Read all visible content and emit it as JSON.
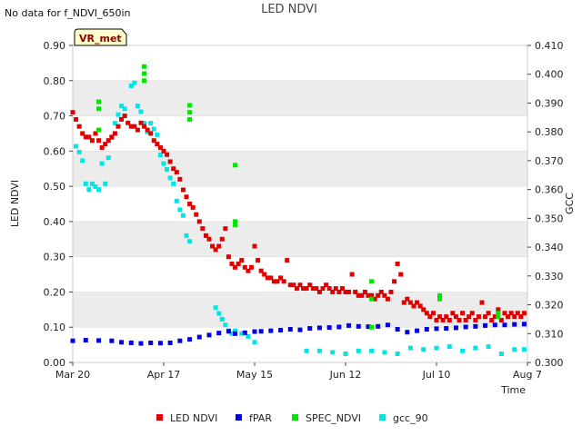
{
  "chart_data": {
    "type": "scatter",
    "title": "LED NDVI",
    "corner_note": "No data for f_NDVI_650in",
    "badge": "VR_met",
    "xlabel": "Time",
    "ylabel_left": "LED NDVI",
    "ylabel_right": "GCC",
    "x_range_days": [
      0,
      140
    ],
    "x_ticks": [
      {
        "day": 0,
        "label": "Mar 20"
      },
      {
        "day": 28,
        "label": "Apr 17"
      },
      {
        "day": 56,
        "label": "May 15"
      },
      {
        "day": 84,
        "label": "Jun 12"
      },
      {
        "day": 112,
        "label": "Jul 10"
      },
      {
        "day": 140,
        "label": "Aug 7"
      }
    ],
    "ylim_left": [
      0.0,
      0.9
    ],
    "left_ticks": [
      "0.00",
      "0.10",
      "0.20",
      "0.30",
      "0.40",
      "0.50",
      "0.60",
      "0.70",
      "0.80",
      "0.90"
    ],
    "ylim_right": [
      0.3,
      0.41
    ],
    "right_ticks": [
      "0.300",
      "0.310",
      "0.320",
      "0.330",
      "0.340",
      "0.350",
      "0.360",
      "0.370",
      "0.380",
      "0.390",
      "0.400",
      "0.410"
    ],
    "colors": {
      "band": "#ececec",
      "grid": "#dddddd"
    },
    "series": [
      {
        "name": "LED NDVI",
        "color": "#e00000",
        "axis": "left",
        "points": [
          [
            0,
            0.71
          ],
          [
            1,
            0.69
          ],
          [
            2,
            0.67
          ],
          [
            3,
            0.65
          ],
          [
            4,
            0.64
          ],
          [
            5,
            0.64
          ],
          [
            6,
            0.63
          ],
          [
            7,
            0.65
          ],
          [
            8,
            0.63
          ],
          [
            9,
            0.61
          ],
          [
            10,
            0.62
          ],
          [
            11,
            0.63
          ],
          [
            12,
            0.64
          ],
          [
            13,
            0.65
          ],
          [
            14,
            0.67
          ],
          [
            15,
            0.69
          ],
          [
            16,
            0.7
          ],
          [
            17,
            0.68
          ],
          [
            18,
            0.67
          ],
          [
            19,
            0.67
          ],
          [
            20,
            0.66
          ],
          [
            21,
            0.68
          ],
          [
            22,
            0.67
          ],
          [
            23,
            0.66
          ],
          [
            24,
            0.65
          ],
          [
            25,
            0.63
          ],
          [
            26,
            0.62
          ],
          [
            27,
            0.61
          ],
          [
            28,
            0.6
          ],
          [
            29,
            0.59
          ],
          [
            30,
            0.57
          ],
          [
            31,
            0.55
          ],
          [
            32,
            0.54
          ],
          [
            33,
            0.52
          ],
          [
            34,
            0.49
          ],
          [
            35,
            0.47
          ],
          [
            36,
            0.45
          ],
          [
            37,
            0.44
          ],
          [
            38,
            0.42
          ],
          [
            39,
            0.4
          ],
          [
            40,
            0.38
          ],
          [
            41,
            0.36
          ],
          [
            42,
            0.35
          ],
          [
            43,
            0.33
          ],
          [
            44,
            0.32
          ],
          [
            45,
            0.33
          ],
          [
            46,
            0.35
          ],
          [
            47,
            0.38
          ],
          [
            48,
            0.3
          ],
          [
            49,
            0.28
          ],
          [
            50,
            0.27
          ],
          [
            51,
            0.28
          ],
          [
            52,
            0.29
          ],
          [
            53,
            0.27
          ],
          [
            54,
            0.26
          ],
          [
            55,
            0.27
          ],
          [
            56,
            0.33
          ],
          [
            57,
            0.29
          ],
          [
            58,
            0.26
          ],
          [
            59,
            0.25
          ],
          [
            60,
            0.24
          ],
          [
            61,
            0.24
          ],
          [
            62,
            0.23
          ],
          [
            63,
            0.23
          ],
          [
            64,
            0.24
          ],
          [
            65,
            0.23
          ],
          [
            66,
            0.29
          ],
          [
            67,
            0.22
          ],
          [
            68,
            0.22
          ],
          [
            69,
            0.21
          ],
          [
            70,
            0.22
          ],
          [
            71,
            0.21
          ],
          [
            72,
            0.21
          ],
          [
            73,
            0.22
          ],
          [
            74,
            0.21
          ],
          [
            75,
            0.21
          ],
          [
            76,
            0.2
          ],
          [
            77,
            0.21
          ],
          [
            78,
            0.22
          ],
          [
            79,
            0.21
          ],
          [
            80,
            0.2
          ],
          [
            81,
            0.21
          ],
          [
            82,
            0.2
          ],
          [
            83,
            0.21
          ],
          [
            84,
            0.2
          ],
          [
            85,
            0.2
          ],
          [
            86,
            0.25
          ],
          [
            87,
            0.2
          ],
          [
            88,
            0.19
          ],
          [
            89,
            0.19
          ],
          [
            90,
            0.2
          ],
          [
            91,
            0.19
          ],
          [
            92,
            0.19
          ],
          [
            93,
            0.18
          ],
          [
            94,
            0.19
          ],
          [
            95,
            0.2
          ],
          [
            96,
            0.19
          ],
          [
            97,
            0.18
          ],
          [
            98,
            0.2
          ],
          [
            99,
            0.23
          ],
          [
            100,
            0.28
          ],
          [
            101,
            0.25
          ],
          [
            102,
            0.17
          ],
          [
            103,
            0.18
          ],
          [
            104,
            0.17
          ],
          [
            105,
            0.16
          ],
          [
            106,
            0.17
          ],
          [
            107,
            0.16
          ],
          [
            108,
            0.15
          ],
          [
            109,
            0.14
          ],
          [
            110,
            0.13
          ],
          [
            111,
            0.14
          ],
          [
            112,
            0.12
          ],
          [
            113,
            0.13
          ],
          [
            114,
            0.12
          ],
          [
            115,
            0.13
          ],
          [
            116,
            0.12
          ],
          [
            117,
            0.14
          ],
          [
            118,
            0.13
          ],
          [
            119,
            0.12
          ],
          [
            120,
            0.14
          ],
          [
            121,
            0.12
          ],
          [
            122,
            0.13
          ],
          [
            123,
            0.14
          ],
          [
            124,
            0.12
          ],
          [
            125,
            0.13
          ],
          [
            126,
            0.17
          ],
          [
            127,
            0.13
          ],
          [
            128,
            0.14
          ],
          [
            129,
            0.12
          ],
          [
            130,
            0.13
          ],
          [
            131,
            0.15
          ],
          [
            132,
            0.12
          ],
          [
            133,
            0.14
          ],
          [
            134,
            0.13
          ],
          [
            135,
            0.14
          ],
          [
            136,
            0.13
          ],
          [
            137,
            0.14
          ],
          [
            138,
            0.13
          ],
          [
            139,
            0.14
          ]
        ]
      },
      {
        "name": "fPAR",
        "color": "#0000e6",
        "axis": "right",
        "points": [
          [
            0,
            0.3075
          ],
          [
            4,
            0.3077
          ],
          [
            8,
            0.3076
          ],
          [
            12,
            0.3075
          ],
          [
            15,
            0.307
          ],
          [
            18,
            0.3068
          ],
          [
            21,
            0.3066
          ],
          [
            24,
            0.3068
          ],
          [
            27,
            0.3067
          ],
          [
            30,
            0.3068
          ],
          [
            33,
            0.3075
          ],
          [
            36,
            0.308
          ],
          [
            39,
            0.3088
          ],
          [
            42,
            0.3095
          ],
          [
            45,
            0.3102
          ],
          [
            48,
            0.3108
          ],
          [
            50,
            0.31
          ],
          [
            53,
            0.3103
          ],
          [
            56,
            0.3107
          ],
          [
            58,
            0.3108
          ],
          [
            61,
            0.311
          ],
          [
            64,
            0.3112
          ],
          [
            67,
            0.3115
          ],
          [
            70,
            0.3113
          ],
          [
            73,
            0.3118
          ],
          [
            76,
            0.312
          ],
          [
            79,
            0.3121
          ],
          [
            82,
            0.3123
          ],
          [
            85,
            0.3128
          ],
          [
            88,
            0.3125
          ],
          [
            91,
            0.3124
          ],
          [
            94,
            0.3125
          ],
          [
            97,
            0.313
          ],
          [
            100,
            0.3115
          ],
          [
            103,
            0.3105
          ],
          [
            106,
            0.311
          ],
          [
            109,
            0.3115
          ],
          [
            112,
            0.3117
          ],
          [
            115,
            0.3118
          ],
          [
            118,
            0.312
          ],
          [
            121,
            0.3123
          ],
          [
            124,
            0.3125
          ],
          [
            127,
            0.3128
          ],
          [
            130,
            0.313
          ],
          [
            133,
            0.313
          ],
          [
            136,
            0.3132
          ],
          [
            139,
            0.3133
          ]
        ]
      },
      {
        "name": "SPEC_NDVI",
        "color": "#00e600",
        "axis": "left",
        "points": [
          [
            8,
            0.74
          ],
          [
            8,
            0.72
          ],
          [
            8,
            0.66
          ],
          [
            22,
            0.84
          ],
          [
            22,
            0.82
          ],
          [
            22,
            0.8
          ],
          [
            36,
            0.73
          ],
          [
            36,
            0.71
          ],
          [
            36,
            0.69
          ],
          [
            50,
            0.56
          ],
          [
            50,
            0.4
          ],
          [
            50,
            0.39
          ],
          [
            92,
            0.23
          ],
          [
            92,
            0.18
          ],
          [
            92,
            0.1
          ],
          [
            113,
            0.19
          ],
          [
            113,
            0.18
          ],
          [
            131,
            0.14
          ],
          [
            131,
            0.13
          ]
        ]
      },
      {
        "name": "gcc_90",
        "color": "#00e6e6",
        "axis": "right",
        "points": [
          [
            1,
            0.375
          ],
          [
            2,
            0.373
          ],
          [
            3,
            0.37
          ],
          [
            4,
            0.362
          ],
          [
            5,
            0.36
          ],
          [
            6,
            0.362
          ],
          [
            7,
            0.361
          ],
          [
            8,
            0.36
          ],
          [
            9,
            0.369
          ],
          [
            10,
            0.362
          ],
          [
            11,
            0.371
          ],
          [
            12,
            0.378
          ],
          [
            13,
            0.383
          ],
          [
            14,
            0.386
          ],
          [
            15,
            0.389
          ],
          [
            16,
            0.388
          ],
          [
            18,
            0.396
          ],
          [
            19,
            0.397
          ],
          [
            20,
            0.389
          ],
          [
            21,
            0.387
          ],
          [
            22,
            0.383
          ],
          [
            23,
            0.38
          ],
          [
            24,
            0.383
          ],
          [
            25,
            0.381
          ],
          [
            26,
            0.379
          ],
          [
            27,
            0.372
          ],
          [
            28,
            0.369
          ],
          [
            29,
            0.367
          ],
          [
            30,
            0.364
          ],
          [
            31,
            0.362
          ],
          [
            32,
            0.356
          ],
          [
            33,
            0.353
          ],
          [
            34,
            0.351
          ],
          [
            35,
            0.344
          ],
          [
            36,
            0.342
          ],
          [
            44,
            0.319
          ],
          [
            45,
            0.317
          ],
          [
            46,
            0.315
          ],
          [
            47,
            0.313
          ],
          [
            48,
            0.311
          ],
          [
            49,
            0.31
          ],
          [
            50,
            0.311
          ],
          [
            52,
            0.31
          ],
          [
            54,
            0.309
          ],
          [
            56,
            0.307
          ],
          [
            72,
            0.304
          ],
          [
            76,
            0.304
          ],
          [
            80,
            0.3035
          ],
          [
            84,
            0.303
          ],
          [
            88,
            0.304
          ],
          [
            92,
            0.304
          ],
          [
            96,
            0.3035
          ],
          [
            100,
            0.303
          ],
          [
            104,
            0.305
          ],
          [
            108,
            0.3045
          ],
          [
            112,
            0.305
          ],
          [
            116,
            0.3055
          ],
          [
            120,
            0.304
          ],
          [
            124,
            0.305
          ],
          [
            128,
            0.3055
          ],
          [
            132,
            0.303
          ],
          [
            136,
            0.3045
          ],
          [
            139,
            0.3045
          ]
        ]
      }
    ],
    "legend": {
      "placement": "bottom-center",
      "items": [
        "LED NDVI",
        "fPAR",
        "SPEC_NDVI",
        "gcc_90"
      ]
    }
  }
}
